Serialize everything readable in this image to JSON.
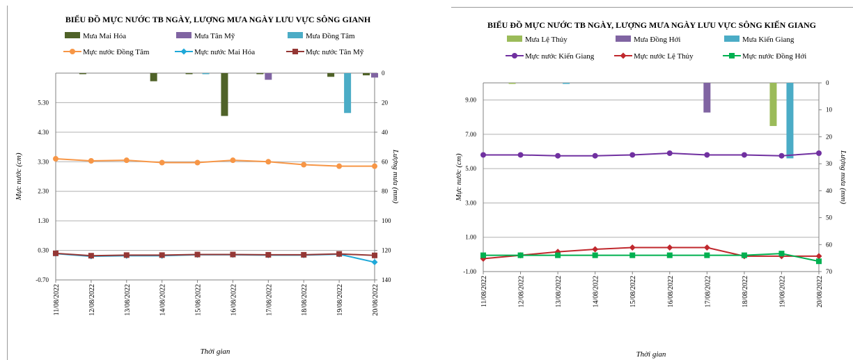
{
  "chart_data": [
    {
      "type": "line",
      "title": "BIỂU ĐỒ MỰC NƯỚC TB NGÀY, LƯỢNG MƯA NGÀY LƯU VỰC SÔNG GIANH",
      "xlabel": "Thời gian",
      "ylabel": "Mực nước (cm)",
      "y2label": "Lượng mưa (mm)",
      "ylim": [
        -0.7,
        6.3
      ],
      "yticks": [
        "-0.70",
        "0.30",
        "1.30",
        "2.30",
        "3.30",
        "4.30",
        "5.30"
      ],
      "y2lim": [
        0,
        140
      ],
      "y2ticks": [
        "0",
        "20",
        "40",
        "60",
        "80",
        "100",
        "120",
        "140"
      ],
      "categories": [
        "11/08/2022",
        "12/08/2022",
        "13/08/2022",
        "14/08/2022",
        "15/08/2022",
        "16/08/2022",
        "17/08/2022",
        "18/08/2022",
        "19/08/2022",
        "20/08/2022"
      ],
      "bar_series": [
        {
          "name": "Mưa Mai Hóa",
          "color": "#4f6228",
          "values": [
            0,
            0.5,
            0,
            5.5,
            0.3,
            29,
            0.3,
            0,
            2.5,
            1.5
          ]
        },
        {
          "name": "Mưa Tân Mỹ",
          "color": "#8064a2",
          "values": [
            0,
            0,
            0,
            0,
            0,
            0,
            4.5,
            0,
            0,
            3
          ]
        },
        {
          "name": "Mưa Đồng Tâm",
          "color": "#4bacc6",
          "values": [
            0,
            0,
            0,
            0,
            0.5,
            0,
            0,
            0,
            27,
            0
          ]
        }
      ],
      "line_series": [
        {
          "name": "Mực nước Đồng Tâm",
          "color": "#f79646",
          "marker": "circle",
          "values": [
            3.4,
            3.33,
            3.35,
            3.27,
            3.27,
            3.35,
            3.3,
            3.2,
            3.15,
            3.15
          ]
        },
        {
          "name": "Mực nước Mai Hóa",
          "color": "#1fa8d8",
          "marker": "diamond",
          "values": [
            0.19,
            0.1,
            0.12,
            0.12,
            0.15,
            0.15,
            0.14,
            0.14,
            0.17,
            -0.1
          ]
        },
        {
          "name": "Mực nước Tân Mỹ",
          "color": "#953735",
          "marker": "square",
          "values": [
            0.2,
            0.12,
            0.14,
            0.14,
            0.16,
            0.16,
            0.15,
            0.15,
            0.18,
            0.13
          ]
        }
      ]
    },
    {
      "type": "line",
      "title": "BIỂU ĐỒ MỰC NƯỚC TB NGÀY, LƯỢNG MƯA NGÀY LƯU VỰC SÔNG KIẾN GIANG",
      "xlabel": "Thời gian",
      "ylabel": "Mực nước (cm)",
      "y2label": "Lượng mưa (mm)",
      "ylim": [
        -1.0,
        10.0
      ],
      "yticks": [
        "-1.00",
        "1.00",
        "3.00",
        "5.00",
        "7.00",
        "9.00"
      ],
      "y2lim": [
        0,
        70
      ],
      "y2ticks": [
        "0",
        "10",
        "20",
        "30",
        "40",
        "50",
        "60",
        "70"
      ],
      "categories": [
        "11/08/2022",
        "12/08/2022",
        "13/08/2022",
        "14/08/2022",
        "15/08/2022",
        "16/08/2022",
        "17/08/2022",
        "18/08/2022",
        "19/08/2022",
        "20/08/2022"
      ],
      "bar_series": [
        {
          "name": "Mưa Lệ Thủy",
          "color": "#9bbb59",
          "values": [
            0,
            0.2,
            0,
            0,
            0,
            0,
            0,
            0,
            16,
            0
          ]
        },
        {
          "name": "Mưa Đồng Hới",
          "color": "#8064a2",
          "values": [
            0,
            0,
            0,
            0,
            0,
            0,
            11,
            0,
            0,
            0
          ]
        },
        {
          "name": "Mưa Kiến Giang",
          "color": "#4bacc6",
          "values": [
            0,
            0,
            0.2,
            0,
            0,
            0,
            0,
            0,
            28,
            0
          ]
        }
      ],
      "line_series": [
        {
          "name": "Mực nước Kiến Giang",
          "color": "#7030a0",
          "marker": "circle",
          "values": [
            5.8,
            5.8,
            5.75,
            5.75,
            5.8,
            5.9,
            5.8,
            5.8,
            5.75,
            5.9
          ]
        },
        {
          "name": "Mực nước Lệ Thủy",
          "color": "#c0282d",
          "marker": "diamond",
          "values": [
            -0.25,
            -0.05,
            0.15,
            0.3,
            0.4,
            0.4,
            0.4,
            -0.1,
            -0.1,
            -0.1
          ]
        },
        {
          "name": "Mực nước Đồng Hới",
          "color": "#00b050",
          "marker": "square",
          "values": [
            -0.05,
            -0.05,
            -0.05,
            -0.05,
            -0.05,
            -0.05,
            -0.05,
            -0.05,
            0.05,
            -0.4
          ]
        }
      ]
    }
  ]
}
